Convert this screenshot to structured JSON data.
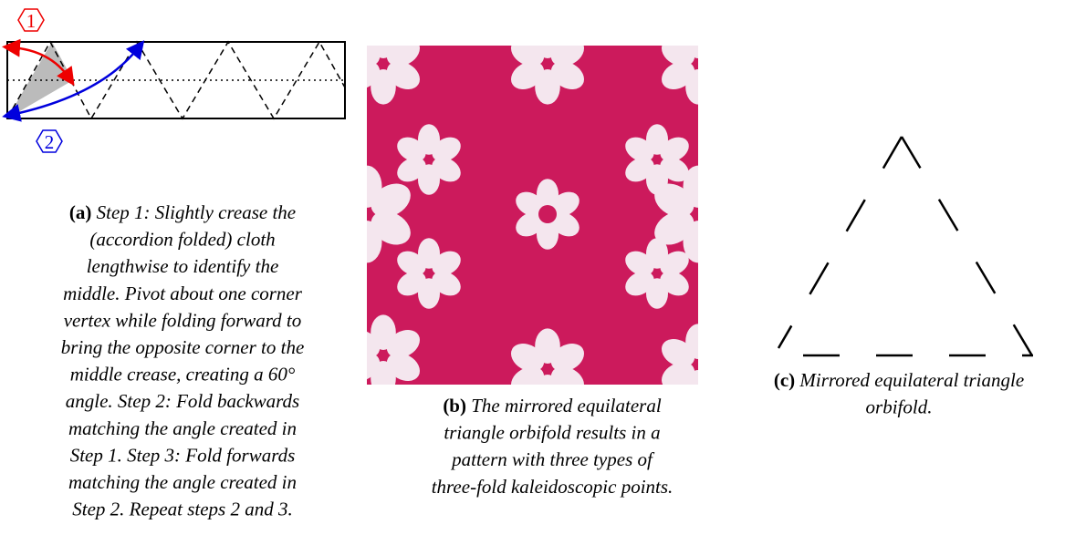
{
  "diagram": {
    "step_markers": [
      "1",
      "2"
    ]
  },
  "captions": [
    {
      "label": "(a)",
      "lines": [
        "Step 1: Slightly crease the",
        "(accordion folded) cloth",
        "lengthwise to identify the",
        "middle. Pivot about one corner",
        "vertex while folding forward to",
        "bring the opposite corner to the",
        "middle crease, creating a 60°",
        "angle. Step 2: Fold backwards",
        "matching the angle created in",
        "Step 1. Step 3: Fold forwards",
        "matching the angle created in",
        "Step 2. Repeat steps 2 and 3."
      ]
    },
    {
      "label": "(b)",
      "lines": [
        "The mirrored equilateral",
        "triangle orbifold results in a",
        "pattern with three types of",
        "three-fold kaleidoscopic points."
      ]
    },
    {
      "label": "(c)",
      "lines": [
        "Mirrored equilateral triangle",
        "orbifold."
      ]
    }
  ]
}
